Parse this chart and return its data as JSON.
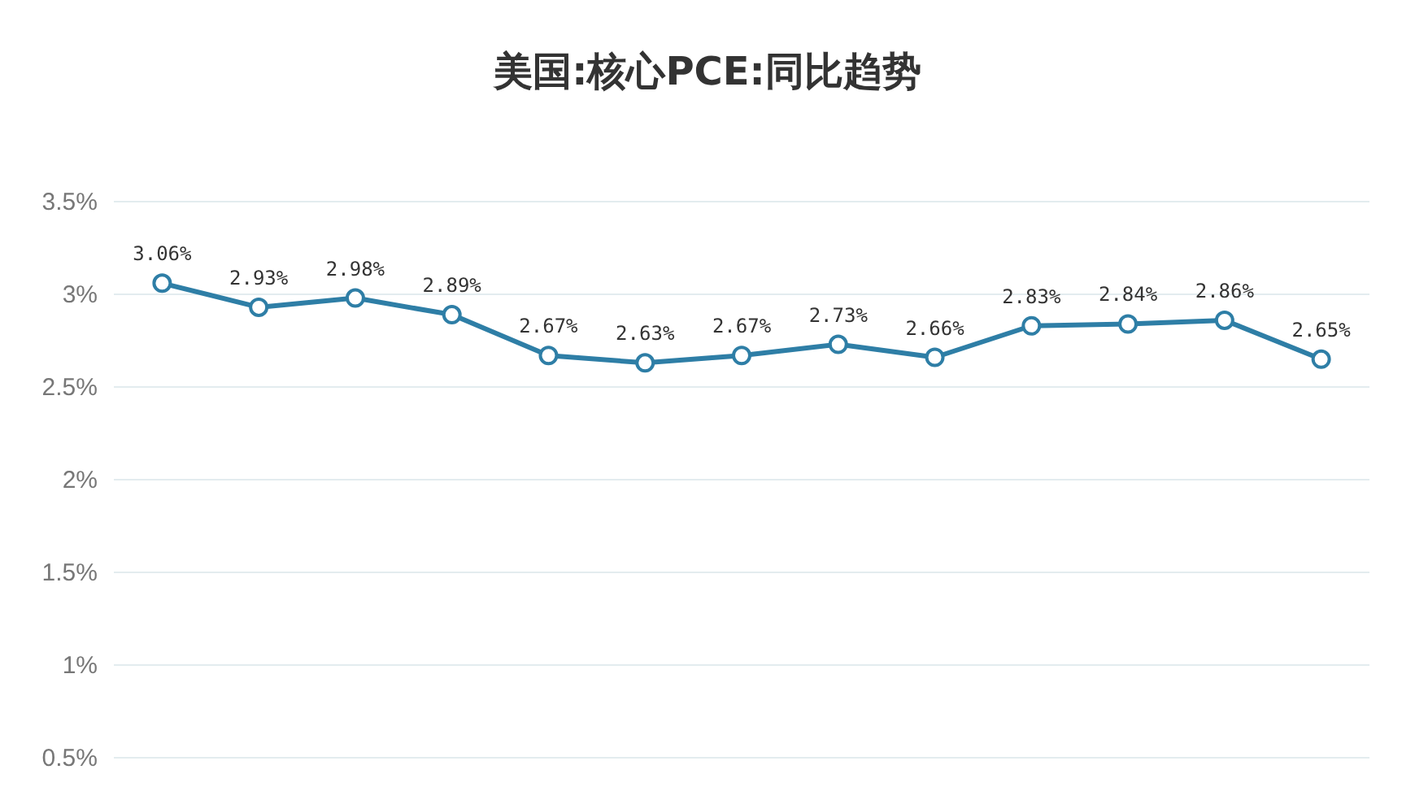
{
  "chart_data": {
    "type": "line",
    "title": "美国:核心PCE:同比趋势",
    "categories": [
      null,
      null,
      null,
      null,
      null,
      null,
      null,
      null,
      null,
      null,
      null,
      null,
      null
    ],
    "series": [
      {
        "color": "#2e7ea6",
        "values": [
          3.06,
          2.93,
          2.98,
          2.89,
          2.67,
          2.63,
          2.67,
          2.73,
          2.66,
          2.83,
          2.84,
          2.86,
          2.65
        ],
        "value_labels": [
          "3.06%",
          "2.93%",
          "2.98%",
          "2.89%",
          "2.67%",
          "2.63%",
          "2.67%",
          "2.73%",
          "2.66%",
          "2.83%",
          "2.84%",
          "2.86%",
          "2.65%"
        ]
      }
    ],
    "ylim": [
      0.5,
      3.5
    ],
    "yticks": [
      {
        "value": 0.5,
        "label": "0.5%"
      },
      {
        "value": 1,
        "label": "1%"
      },
      {
        "value": 1.5,
        "label": "1.5%"
      },
      {
        "value": 2,
        "label": "2%"
      },
      {
        "value": 2.5,
        "label": "2.5%"
      },
      {
        "value": 3,
        "label": "3%"
      },
      {
        "value": 3.5,
        "label": "3.5%"
      }
    ],
    "grid": "y",
    "marker": "circle",
    "line_style": "solid"
  }
}
